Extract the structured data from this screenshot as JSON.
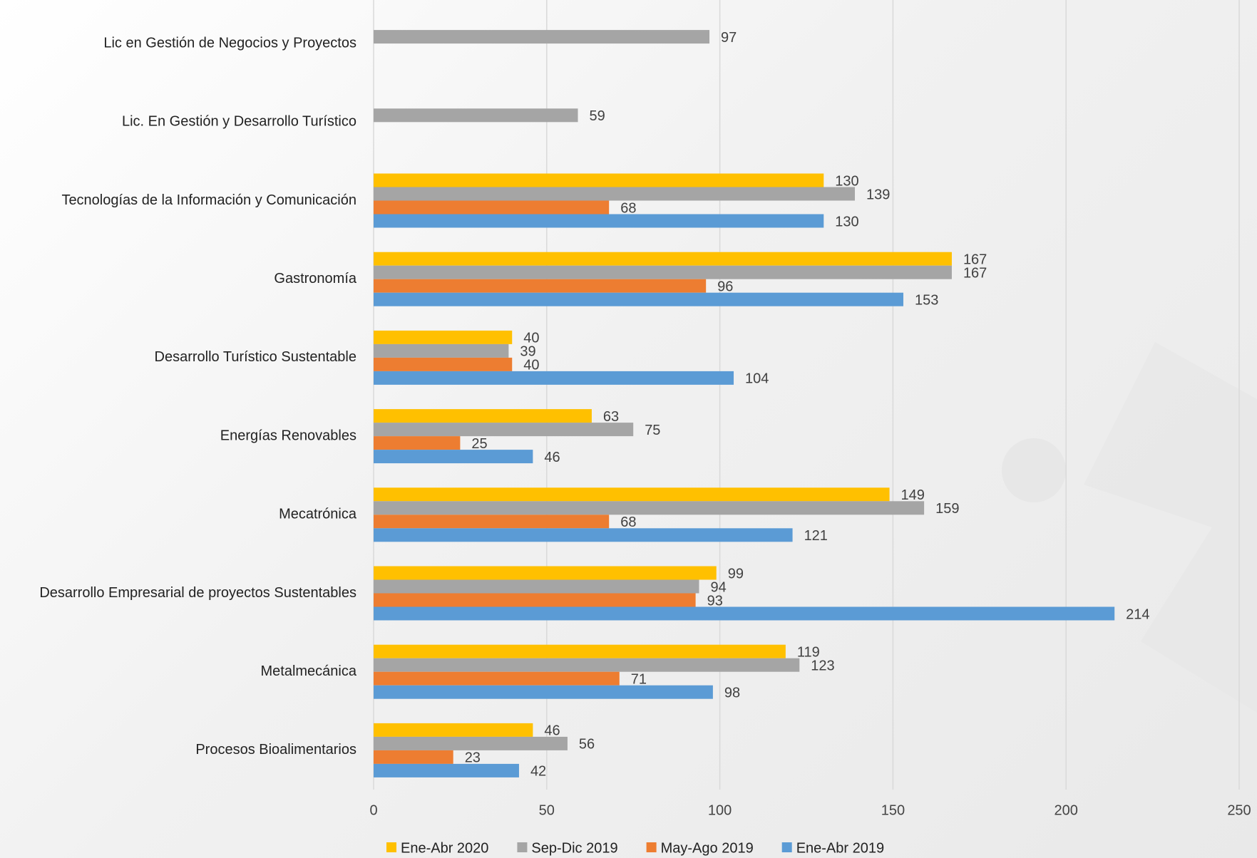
{
  "chart_data": {
    "type": "hbar",
    "categories": [
      "Lic en Gestión de Negocios y Proyectos",
      "Lic. En Gestión y Desarrollo Turístico",
      "Tecnologías de la Información y Comunicación",
      "Gastronomía",
      "Desarrollo Turístico Sustentable",
      "Energías Renovables",
      "Mecatrónica",
      "Desarrollo Empresarial de proyectos Sustentables",
      "Metalmecánica",
      "Procesos Bioalimentarios"
    ],
    "series": [
      {
        "name": "Ene-Abr 2020",
        "color": "#ffc000",
        "values": [
          null,
          null,
          130,
          167,
          40,
          63,
          149,
          99,
          119,
          46
        ]
      },
      {
        "name": "Sep-Dic 2019",
        "color": "#a5a5a5",
        "values": [
          97,
          59,
          139,
          167,
          39,
          75,
          159,
          94,
          123,
          56
        ]
      },
      {
        "name": "May-Ago 2019",
        "color": "#ed7d31",
        "values": [
          null,
          null,
          68,
          96,
          40,
          25,
          68,
          93,
          71,
          23
        ]
      },
      {
        "name": "Ene-Abr 2019",
        "color": "#5b9bd5",
        "values": [
          null,
          null,
          130,
          153,
          104,
          46,
          121,
          214,
          98,
          42
        ]
      }
    ],
    "xlim": [
      0,
      250
    ],
    "xticks": [
      0,
      50,
      100,
      150,
      200,
      250
    ],
    "grid": true,
    "legend": "bottom"
  }
}
